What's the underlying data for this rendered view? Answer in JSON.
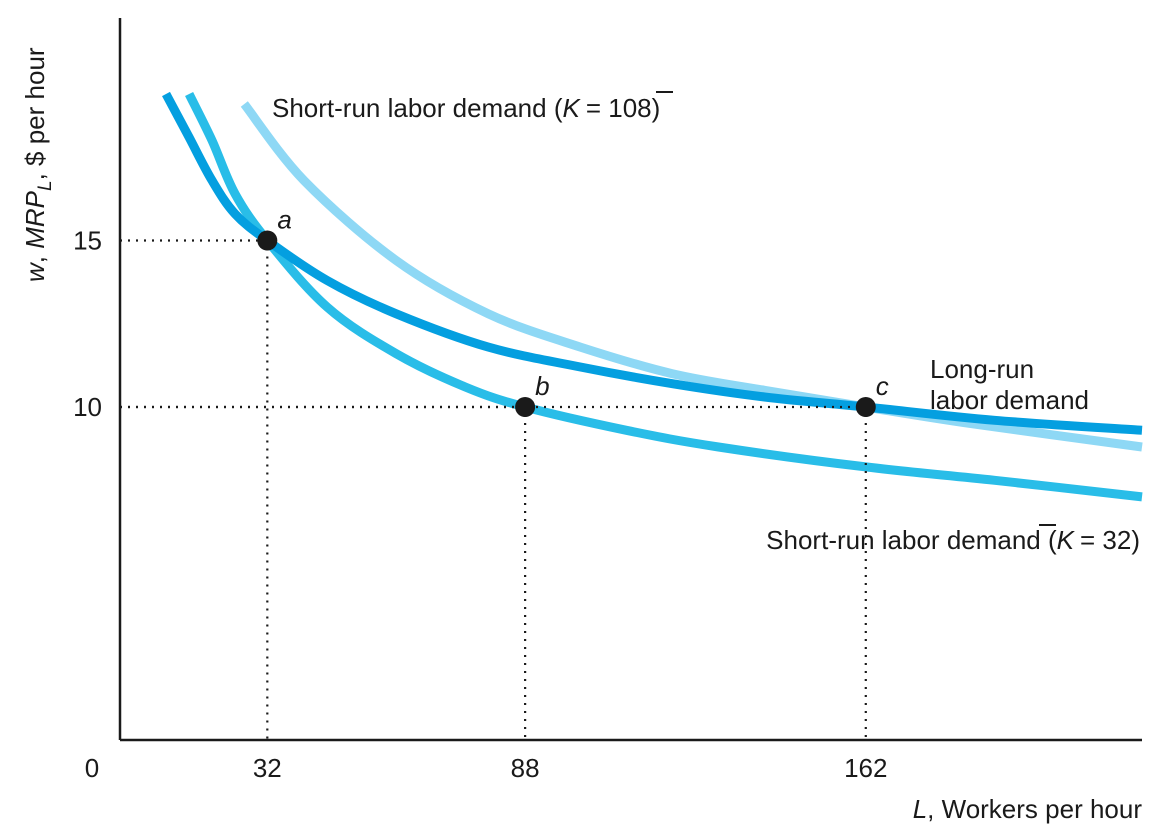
{
  "chart_data": {
    "type": "line",
    "ylabel": "w, MRP_L, $ per hour",
    "ylabel_parts": {
      "w": "w",
      "comma1": ", ",
      "mrp": "MRP",
      "sub": "L",
      "rest": ", $ per hour"
    },
    "xlabel_parts": {
      "var": "L",
      "rest": ", Workers per hour"
    },
    "origin_label": "0",
    "x_ticks": [
      "32",
      "88",
      "162"
    ],
    "y_ticks": [
      "15",
      "10"
    ],
    "xlim": [
      0,
      222
    ],
    "ylim": [
      0,
      20
    ],
    "series": [
      {
        "name": "Short-run labor demand (K̄ = 108)",
        "label_parts": {
          "pre": "Short-run labor demand (",
          "k": "K",
          "post": "= 108)"
        },
        "color": "#8ed8f5",
        "x": [
          27,
          40,
          60,
          80,
          100,
          120,
          140,
          162,
          185,
          222
        ],
        "y": [
          19.1,
          16.8,
          14.4,
          12.8,
          11.8,
          11.0,
          10.5,
          10.0,
          9.5,
          8.8
        ]
      },
      {
        "name": "Short-run labor demand (K̄ = 32)",
        "label_parts": {
          "pre": "Short-run labor demand (",
          "k": "K",
          "post": "= 32)"
        },
        "color": "#29bde8",
        "x": [
          15,
          20,
          25,
          32,
          45,
          60,
          75,
          88,
          110,
          130,
          162,
          190,
          222
        ],
        "y": [
          19.4,
          18.0,
          16.4,
          15.0,
          13.0,
          11.6,
          10.6,
          10.0,
          9.3,
          8.8,
          8.2,
          7.8,
          7.3
        ]
      },
      {
        "name": "Long-run labor demand",
        "label_lines": [
          "Long-run",
          "labor demand"
        ],
        "color": "#049fe0",
        "x": [
          10,
          15,
          20,
          25,
          32,
          45,
          60,
          80,
          100,
          120,
          140,
          162,
          190,
          222
        ],
        "y": [
          19.4,
          18.1,
          16.8,
          15.8,
          15.0,
          13.8,
          12.8,
          11.8,
          11.2,
          10.7,
          10.3,
          10.0,
          9.6,
          9.3
        ]
      }
    ],
    "points": [
      {
        "label": "a",
        "x": 32,
        "y": 15
      },
      {
        "label": "b",
        "x": 88,
        "y": 10
      },
      {
        "label": "c",
        "x": 162,
        "y": 10
      }
    ],
    "grid": false,
    "legend": "none"
  }
}
